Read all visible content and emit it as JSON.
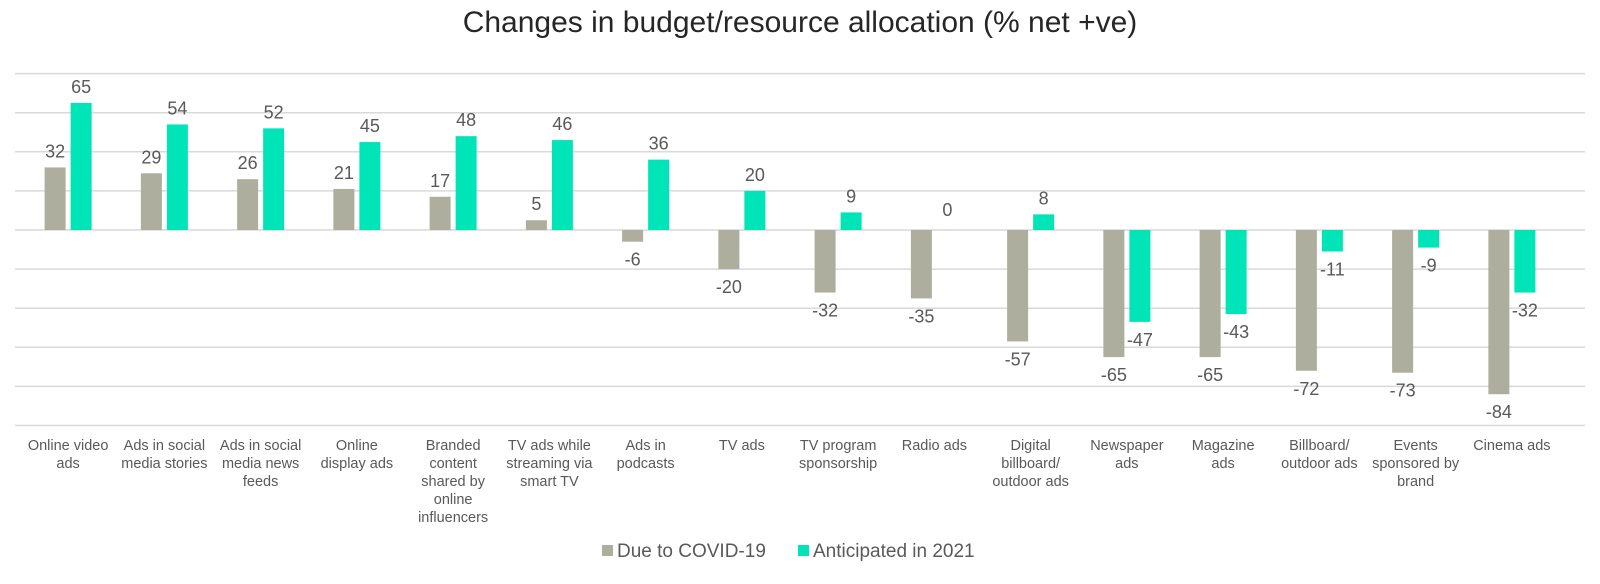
{
  "chart_data": {
    "type": "bar",
    "title": "Changes in budget/resource allocation (% net +ve)",
    "xlabel": "",
    "ylabel": "",
    "ylim": [
      -100,
      80
    ],
    "grid": true,
    "legend_position": "bottom",
    "categories": [
      [
        "Online video",
        "ads"
      ],
      [
        "Ads in social",
        "media stories"
      ],
      [
        "Ads in social",
        "media news",
        "feeds"
      ],
      [
        "Online",
        "display ads"
      ],
      [
        "Branded",
        "content",
        "shared by",
        "online",
        "influencers"
      ],
      [
        "TV ads while",
        "streaming via",
        "smart TV"
      ],
      [
        "Ads in",
        "podcasts"
      ],
      [
        "TV ads"
      ],
      [
        "TV program",
        "sponsorship"
      ],
      [
        "Radio ads"
      ],
      [
        "Digital",
        "billboard/",
        "outdoor ads"
      ],
      [
        "Newspaper",
        "ads"
      ],
      [
        "Magazine",
        "ads"
      ],
      [
        "Billboard/",
        "outdoor ads"
      ],
      [
        "Events",
        "sponsored by",
        "brand"
      ],
      [
        "Cinema ads"
      ]
    ],
    "series": [
      {
        "name": "Due to COVID-19",
        "color": "#aeae9e",
        "values": [
          32,
          29,
          26,
          21,
          17,
          5,
          -6,
          -20,
          -32,
          -35,
          -57,
          -65,
          -65,
          -72,
          -73,
          -84
        ],
        "labels": [
          "32",
          "29",
          "26",
          "21",
          "17",
          "5",
          "-6",
          "-20",
          "-32",
          "-35",
          "-57",
          "-65",
          "-65",
          "-72",
          "-73",
          "-84"
        ]
      },
      {
        "name": "Anticipated in 2021",
        "color": "#00e5b7",
        "values": [
          65,
          54,
          52,
          45,
          48,
          46,
          36,
          20,
          9,
          0,
          8,
          -47,
          -43,
          -11,
          -9,
          -32
        ],
        "labels": [
          "65",
          "54",
          "52",
          "45",
          "48",
          "46",
          "36",
          "20",
          "9",
          "0",
          "8",
          "-47",
          "-43",
          "-11",
          "-9",
          "-32"
        ]
      }
    ]
  }
}
